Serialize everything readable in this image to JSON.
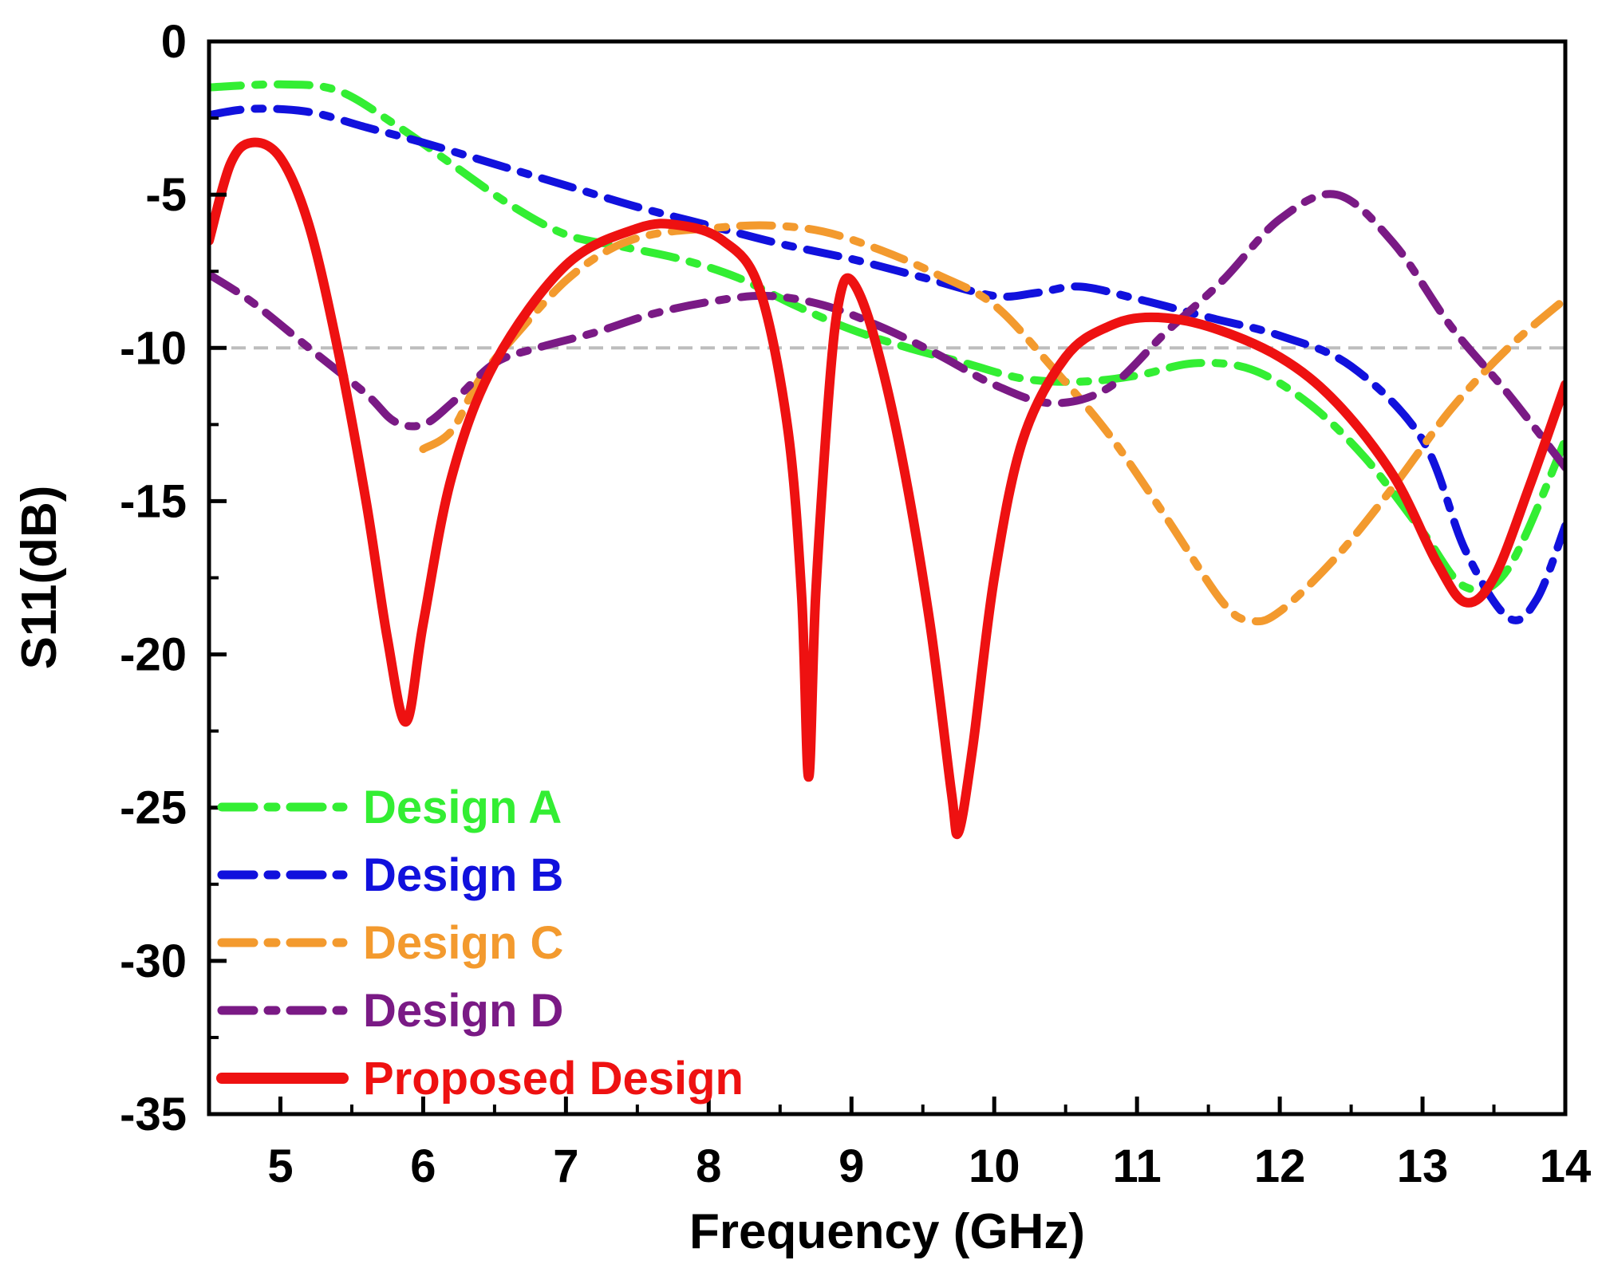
{
  "chart_data": {
    "type": "line",
    "title": "",
    "xlabel": "Frequency (GHz)",
    "ylabel": "S11(dB)",
    "xlim": [
      4.5,
      14
    ],
    "ylim": [
      -35,
      0
    ],
    "xticks": [
      5,
      6,
      7,
      8,
      9,
      10,
      11,
      12,
      13,
      14
    ],
    "xtick_labels": [
      "5",
      "6",
      "7",
      "8",
      "9",
      "10",
      "11",
      "12",
      "13",
      "14"
    ],
    "yticks": [
      0,
      -5,
      -10,
      -15,
      -20,
      -25,
      -30,
      -35
    ],
    "ytick_labels": [
      "0",
      "-5",
      "-10",
      "-15",
      "-20",
      "-25",
      "-30",
      "-35"
    ],
    "reference_line": {
      "y": -10,
      "color": "#bdbdbd",
      "style": "dashed"
    },
    "legend_position": "bottom-left",
    "series": [
      {
        "name": "Design A",
        "color": "#33ee33",
        "style": "dash-dot",
        "points": [
          [
            4.5,
            -1.5
          ],
          [
            5.0,
            -1.4
          ],
          [
            5.4,
            -1.6
          ],
          [
            5.8,
            -2.7
          ],
          [
            6.2,
            -4.0
          ],
          [
            6.6,
            -5.3
          ],
          [
            7.0,
            -6.3
          ],
          [
            7.4,
            -6.7
          ],
          [
            7.8,
            -7.1
          ],
          [
            8.2,
            -7.7
          ],
          [
            8.6,
            -8.6
          ],
          [
            9.0,
            -9.4
          ],
          [
            9.4,
            -10.0
          ],
          [
            9.8,
            -10.5
          ],
          [
            10.2,
            -11.0
          ],
          [
            10.6,
            -11.1
          ],
          [
            11.0,
            -10.9
          ],
          [
            11.4,
            -10.5
          ],
          [
            11.8,
            -10.7
          ],
          [
            12.2,
            -11.8
          ],
          [
            12.6,
            -13.6
          ],
          [
            13.0,
            -16.0
          ],
          [
            13.3,
            -17.8
          ],
          [
            13.6,
            -17.2
          ],
          [
            14.0,
            -13.0
          ]
        ]
      },
      {
        "name": "Design B",
        "color": "#1111dd",
        "style": "dash-dot",
        "points": [
          [
            4.5,
            -2.4
          ],
          [
            4.8,
            -2.2
          ],
          [
            5.2,
            -2.3
          ],
          [
            5.6,
            -2.8
          ],
          [
            6.0,
            -3.3
          ],
          [
            6.5,
            -4.0
          ],
          [
            7.0,
            -4.7
          ],
          [
            7.5,
            -5.4
          ],
          [
            8.0,
            -6.0
          ],
          [
            8.5,
            -6.6
          ],
          [
            9.0,
            -7.1
          ],
          [
            9.5,
            -7.7
          ],
          [
            10.0,
            -8.3
          ],
          [
            10.3,
            -8.2
          ],
          [
            10.6,
            -8.0
          ],
          [
            11.0,
            -8.4
          ],
          [
            11.5,
            -9.0
          ],
          [
            12.0,
            -9.6
          ],
          [
            12.5,
            -10.6
          ],
          [
            13.0,
            -13.0
          ],
          [
            13.3,
            -16.6
          ],
          [
            13.6,
            -18.8
          ],
          [
            13.8,
            -18.2
          ],
          [
            14.0,
            -15.8
          ]
        ]
      },
      {
        "name": "Design C",
        "color": "#f39a2e",
        "style": "dash-dot",
        "points": [
          [
            6.0,
            -13.3
          ],
          [
            6.2,
            -12.7
          ],
          [
            6.4,
            -11.0
          ],
          [
            6.7,
            -9.3
          ],
          [
            7.0,
            -7.8
          ],
          [
            7.3,
            -6.8
          ],
          [
            7.6,
            -6.3
          ],
          [
            8.0,
            -6.1
          ],
          [
            8.4,
            -6.0
          ],
          [
            8.8,
            -6.2
          ],
          [
            9.2,
            -6.8
          ],
          [
            9.6,
            -7.6
          ],
          [
            10.0,
            -8.6
          ],
          [
            10.4,
            -10.6
          ],
          [
            10.8,
            -12.8
          ],
          [
            11.2,
            -15.5
          ],
          [
            11.6,
            -18.3
          ],
          [
            11.8,
            -18.9
          ],
          [
            12.0,
            -18.6
          ],
          [
            12.4,
            -16.8
          ],
          [
            12.8,
            -14.5
          ],
          [
            13.2,
            -12.0
          ],
          [
            13.6,
            -10.0
          ],
          [
            14.0,
            -8.4
          ]
        ]
      },
      {
        "name": "Design D",
        "color": "#7a1a85",
        "style": "dash-dot",
        "points": [
          [
            4.5,
            -7.6
          ],
          [
            4.8,
            -8.5
          ],
          [
            5.2,
            -10.0
          ],
          [
            5.6,
            -11.5
          ],
          [
            5.8,
            -12.4
          ],
          [
            6.0,
            -12.5
          ],
          [
            6.2,
            -11.8
          ],
          [
            6.5,
            -10.5
          ],
          [
            6.8,
            -10.0
          ],
          [
            7.2,
            -9.5
          ],
          [
            7.6,
            -8.9
          ],
          [
            8.0,
            -8.5
          ],
          [
            8.4,
            -8.3
          ],
          [
            8.8,
            -8.6
          ],
          [
            9.2,
            -9.3
          ],
          [
            9.6,
            -10.2
          ],
          [
            10.0,
            -11.2
          ],
          [
            10.4,
            -11.8
          ],
          [
            10.8,
            -11.3
          ],
          [
            11.2,
            -9.5
          ],
          [
            11.6,
            -7.8
          ],
          [
            12.0,
            -5.8
          ],
          [
            12.4,
            -5.0
          ],
          [
            12.8,
            -6.6
          ],
          [
            13.2,
            -9.3
          ],
          [
            13.6,
            -11.5
          ],
          [
            14.0,
            -13.9
          ]
        ]
      },
      {
        "name": "Proposed Design",
        "color": "#ee1111",
        "style": "solid",
        "points": [
          [
            4.5,
            -6.5
          ],
          [
            4.65,
            -4.0
          ],
          [
            4.8,
            -3.3
          ],
          [
            5.0,
            -3.8
          ],
          [
            5.2,
            -6.0
          ],
          [
            5.4,
            -10.0
          ],
          [
            5.6,
            -15.0
          ],
          [
            5.75,
            -19.5
          ],
          [
            5.88,
            -22.2
          ],
          [
            6.0,
            -19.0
          ],
          [
            6.2,
            -14.2
          ],
          [
            6.5,
            -10.5
          ],
          [
            7.0,
            -7.3
          ],
          [
            7.5,
            -6.1
          ],
          [
            7.8,
            -6.0
          ],
          [
            8.1,
            -6.5
          ],
          [
            8.35,
            -8.0
          ],
          [
            8.55,
            -12.5
          ],
          [
            8.65,
            -18.0
          ],
          [
            8.7,
            -24.0
          ],
          [
            8.75,
            -18.0
          ],
          [
            8.85,
            -11.0
          ],
          [
            8.92,
            -8.3
          ],
          [
            9.0,
            -7.8
          ],
          [
            9.15,
            -9.5
          ],
          [
            9.35,
            -13.5
          ],
          [
            9.55,
            -19.0
          ],
          [
            9.7,
            -24.5
          ],
          [
            9.75,
            -25.8
          ],
          [
            9.85,
            -23.0
          ],
          [
            10.0,
            -17.5
          ],
          [
            10.2,
            -13.0
          ],
          [
            10.5,
            -10.3
          ],
          [
            10.8,
            -9.3
          ],
          [
            11.1,
            -9.0
          ],
          [
            11.5,
            -9.3
          ],
          [
            12.0,
            -10.3
          ],
          [
            12.4,
            -11.8
          ],
          [
            12.8,
            -14.2
          ],
          [
            13.1,
            -17.0
          ],
          [
            13.3,
            -18.3
          ],
          [
            13.5,
            -17.5
          ],
          [
            13.75,
            -14.5
          ],
          [
            14.0,
            -11.2
          ]
        ]
      }
    ]
  }
}
